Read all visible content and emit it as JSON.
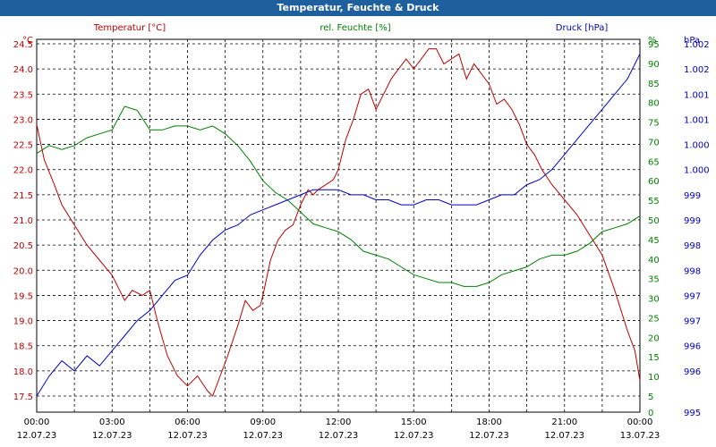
{
  "title": "Temperatur, Feuchte & Druck",
  "chart_data": {
    "type": "line",
    "title": "Temperatur, Feuchte & Druck",
    "x_axis": {
      "range_hours": [
        0,
        24
      ],
      "ticks": [
        {
          "h": 0,
          "time": "00:00",
          "date": "12.07.23"
        },
        {
          "h": 3,
          "time": "03:00",
          "date": "12.07.23"
        },
        {
          "h": 6,
          "time": "06:00",
          "date": "12.07.23"
        },
        {
          "h": 9,
          "time": "09:00",
          "date": "12.07.23"
        },
        {
          "h": 12,
          "time": "12:00",
          "date": "12.07.23"
        },
        {
          "h": 15,
          "time": "15:00",
          "date": "12.07.23"
        },
        {
          "h": 18,
          "time": "18:00",
          "date": "12.07.23"
        },
        {
          "h": 21,
          "time": "21:00",
          "date": "12.07.23"
        },
        {
          "h": 24,
          "time": "00:00",
          "date": "13.07.23"
        }
      ]
    },
    "axes": {
      "temperature": {
        "unit": "°C",
        "legend": "Temperatur [°C]",
        "color": "#c00000",
        "range": [
          17.5,
          24.5
        ],
        "ticks": [
          [
            "17.5",
            17.5
          ],
          [
            "18.0",
            18.0
          ],
          [
            "18.5",
            18.5
          ],
          [
            "19.0",
            19.0
          ],
          [
            "19.5",
            19.5
          ],
          [
            "20.0",
            20.0
          ],
          [
            "20.5",
            20.5
          ],
          [
            "21.0",
            21.0
          ],
          [
            "21.5",
            21.5
          ],
          [
            "22.0",
            22.0
          ],
          [
            "22.5",
            22.5
          ],
          [
            "23.0",
            23.0
          ],
          [
            "23.5",
            23.5
          ],
          [
            "24.0",
            24.0
          ],
          [
            "24.5",
            24.5
          ]
        ]
      },
      "humidity": {
        "unit": "%",
        "legend": "rel. Feuchte [%]",
        "color": "#008000",
        "range": [
          5,
          95
        ],
        "ticks": [
          [
            "0",
            0
          ],
          [
            "5",
            5
          ],
          [
            "10",
            10
          ],
          [
            "15",
            15
          ],
          [
            "20",
            20
          ],
          [
            "25",
            25
          ],
          [
            "30",
            30
          ],
          [
            "35",
            35
          ],
          [
            "40",
            40
          ],
          [
            "45",
            45
          ],
          [
            "50",
            50
          ],
          [
            "55",
            55
          ],
          [
            "60",
            60
          ],
          [
            "65",
            65
          ],
          [
            "70",
            70
          ],
          [
            "75",
            75
          ],
          [
            "80",
            80
          ],
          [
            "85",
            85
          ],
          [
            "90",
            90
          ],
          [
            "95",
            95
          ]
        ]
      },
      "pressure": {
        "unit": "hPa",
        "legend": "Druck [hPa]",
        "color": "#0000c0",
        "range": [
          995.5,
          1002.5
        ],
        "ticks": [
          [
            "995",
            995.5
          ],
          [
            "996",
            996
          ],
          [
            "996",
            996.5
          ],
          [
            "997",
            997
          ],
          [
            "997",
            997.5
          ],
          [
            "998",
            998
          ],
          [
            "998",
            998.5
          ],
          [
            "999",
            999
          ],
          [
            "999",
            999.5
          ],
          [
            "1.000",
            1000
          ],
          [
            "1.000",
            1000.5
          ],
          [
            "1.001",
            1001
          ],
          [
            "1.001",
            1001.5
          ],
          [
            "1.002",
            1002
          ],
          [
            "1.002",
            1002.5
          ]
        ]
      }
    },
    "series": [
      {
        "name": "Temperatur",
        "axis": "temperature",
        "points": [
          [
            0,
            22.9
          ],
          [
            0.3,
            22.2
          ],
          [
            0.7,
            21.7
          ],
          [
            1,
            21.3
          ],
          [
            1.5,
            20.9
          ],
          [
            2,
            20.5
          ],
          [
            2.5,
            20.2
          ],
          [
            3,
            19.9
          ],
          [
            3.3,
            19.6
          ],
          [
            3.5,
            19.4
          ],
          [
            3.8,
            19.6
          ],
          [
            4.2,
            19.5
          ],
          [
            4.5,
            19.6
          ],
          [
            4.8,
            19.0
          ],
          [
            5.2,
            18.3
          ],
          [
            5.6,
            17.9
          ],
          [
            6,
            17.7
          ],
          [
            6.4,
            17.9
          ],
          [
            6.8,
            17.6
          ],
          [
            7,
            17.5
          ],
          [
            7.3,
            17.9
          ],
          [
            7.6,
            18.3
          ],
          [
            8,
            18.9
          ],
          [
            8.3,
            19.4
          ],
          [
            8.6,
            19.2
          ],
          [
            8.9,
            19.3
          ],
          [
            9,
            19.5
          ],
          [
            9.3,
            20.2
          ],
          [
            9.6,
            20.6
          ],
          [
            9.9,
            20.8
          ],
          [
            10.2,
            20.9
          ],
          [
            10.5,
            21.3
          ],
          [
            10.8,
            21.6
          ],
          [
            11.0,
            21.5
          ],
          [
            11.2,
            21.6
          ],
          [
            11.5,
            21.7
          ],
          [
            11.8,
            21.8
          ],
          [
            12,
            22.0
          ],
          [
            12.3,
            22.6
          ],
          [
            12.6,
            23.0
          ],
          [
            12.9,
            23.5
          ],
          [
            13.2,
            23.6
          ],
          [
            13.5,
            23.2
          ],
          [
            13.8,
            23.5
          ],
          [
            14.1,
            23.8
          ],
          [
            14.4,
            24.0
          ],
          [
            14.7,
            24.2
          ],
          [
            15,
            24.0
          ],
          [
            15.3,
            24.2
          ],
          [
            15.6,
            24.4
          ],
          [
            15.9,
            24.4
          ],
          [
            16.2,
            24.1
          ],
          [
            16.5,
            24.2
          ],
          [
            16.8,
            24.3
          ],
          [
            17.1,
            23.8
          ],
          [
            17.4,
            24.1
          ],
          [
            17.7,
            23.9
          ],
          [
            18,
            23.7
          ],
          [
            18.3,
            23.3
          ],
          [
            18.6,
            23.4
          ],
          [
            18.9,
            23.2
          ],
          [
            19.2,
            22.9
          ],
          [
            19.5,
            22.5
          ],
          [
            19.8,
            22.3
          ],
          [
            20.1,
            22.0
          ],
          [
            20.5,
            21.7
          ],
          [
            21,
            21.4
          ],
          [
            21.5,
            21.1
          ],
          [
            22,
            20.7
          ],
          [
            22.5,
            20.3
          ],
          [
            23,
            19.6
          ],
          [
            23.5,
            18.8
          ],
          [
            23.8,
            18.4
          ],
          [
            24,
            17.8
          ]
        ]
      },
      {
        "name": "rel. Feuchte",
        "axis": "humidity",
        "points": [
          [
            0,
            67
          ],
          [
            0.5,
            69
          ],
          [
            1,
            68
          ],
          [
            1.5,
            69
          ],
          [
            2,
            71
          ],
          [
            2.5,
            72
          ],
          [
            3,
            73
          ],
          [
            3.5,
            79
          ],
          [
            4,
            78
          ],
          [
            4.5,
            73
          ],
          [
            5,
            73
          ],
          [
            5.5,
            74
          ],
          [
            6,
            74
          ],
          [
            6.5,
            73
          ],
          [
            7,
            74
          ],
          [
            7.5,
            72
          ],
          [
            8,
            69
          ],
          [
            8.5,
            65
          ],
          [
            9,
            60
          ],
          [
            9.5,
            57
          ],
          [
            10,
            55
          ],
          [
            10.5,
            52
          ],
          [
            11,
            49
          ],
          [
            11.5,
            48
          ],
          [
            12,
            47
          ],
          [
            12.5,
            45
          ],
          [
            13,
            42
          ],
          [
            13.5,
            41
          ],
          [
            14,
            40
          ],
          [
            14.5,
            38
          ],
          [
            15,
            36
          ],
          [
            15.5,
            35
          ],
          [
            16,
            34
          ],
          [
            16.5,
            34
          ],
          [
            17,
            33
          ],
          [
            17.5,
            33
          ],
          [
            18,
            34
          ],
          [
            18.5,
            36
          ],
          [
            19,
            37
          ],
          [
            19.5,
            38
          ],
          [
            20,
            40
          ],
          [
            20.5,
            41
          ],
          [
            21,
            41
          ],
          [
            21.5,
            42
          ],
          [
            22,
            44
          ],
          [
            22.5,
            47
          ],
          [
            23,
            48
          ],
          [
            23.5,
            49
          ],
          [
            24,
            51
          ]
        ]
      },
      {
        "name": "Druck",
        "axis": "pressure",
        "points": [
          [
            0,
            995.5
          ],
          [
            0.5,
            995.9
          ],
          [
            1,
            996.2
          ],
          [
            1.5,
            996.0
          ],
          [
            2,
            996.3
          ],
          [
            2.5,
            996.1
          ],
          [
            3,
            996.4
          ],
          [
            3.5,
            996.7
          ],
          [
            4,
            997.0
          ],
          [
            4.5,
            997.2
          ],
          [
            5,
            997.5
          ],
          [
            5.5,
            997.8
          ],
          [
            6,
            997.9
          ],
          [
            6.5,
            998.3
          ],
          [
            7,
            998.6
          ],
          [
            7.5,
            998.8
          ],
          [
            8,
            998.9
          ],
          [
            8.5,
            999.1
          ],
          [
            9,
            999.2
          ],
          [
            9.5,
            999.3
          ],
          [
            10,
            999.4
          ],
          [
            10.5,
            999.5
          ],
          [
            11,
            999.6
          ],
          [
            11.5,
            999.6
          ],
          [
            12,
            999.6
          ],
          [
            12.5,
            999.5
          ],
          [
            13,
            999.5
          ],
          [
            13.5,
            999.4
          ],
          [
            14,
            999.4
          ],
          [
            14.5,
            999.3
          ],
          [
            15,
            999.3
          ],
          [
            15.5,
            999.4
          ],
          [
            16,
            999.4
          ],
          [
            16.5,
            999.3
          ],
          [
            17,
            999.3
          ],
          [
            17.5,
            999.3
          ],
          [
            18,
            999.4
          ],
          [
            18.5,
            999.5
          ],
          [
            19,
            999.5
          ],
          [
            19.5,
            999.7
          ],
          [
            20,
            999.8
          ],
          [
            20.5,
            1000.0
          ],
          [
            21,
            1000.3
          ],
          [
            21.5,
            1000.6
          ],
          [
            22,
            1000.9
          ],
          [
            22.5,
            1001.2
          ],
          [
            23,
            1001.5
          ],
          [
            23.5,
            1001.8
          ],
          [
            24,
            1002.3
          ]
        ]
      }
    ]
  }
}
